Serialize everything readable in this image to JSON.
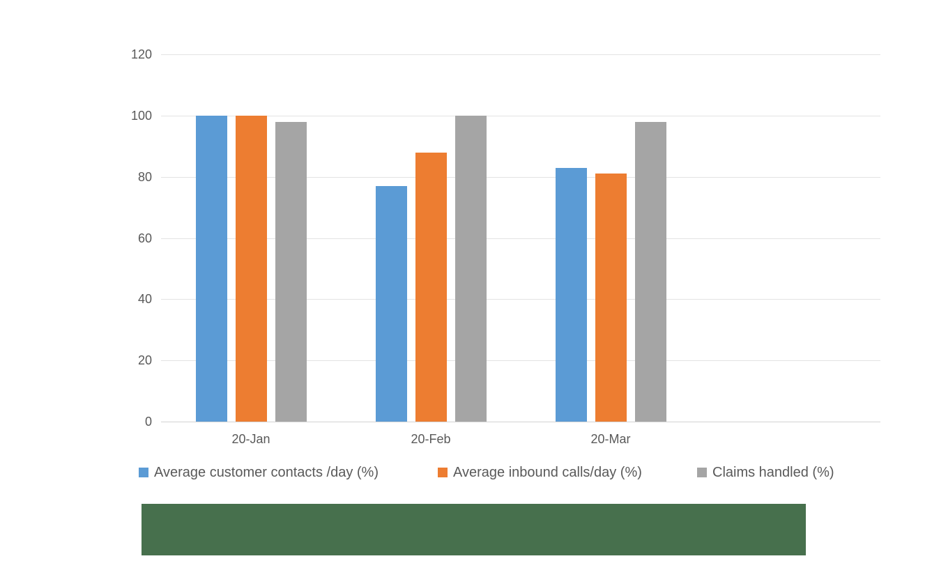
{
  "chart_data": {
    "type": "bar",
    "title": "",
    "categories": [
      "20-Jan",
      "20-Feb",
      "20-Mar"
    ],
    "series": [
      {
        "name": "Average customer contacts /day (%)",
        "color": "#5B9BD5",
        "values": [
          100,
          77,
          83
        ]
      },
      {
        "name": "Average inbound calls/day (%)",
        "color": "#ED7D31",
        "values": [
          100,
          88,
          81
        ]
      },
      {
        "name": "Claims handled (%)",
        "color": "#A5A5A5",
        "values": [
          98,
          100,
          98
        ]
      }
    ],
    "xlabel": "",
    "ylabel": "",
    "ylim": [
      0,
      120
    ],
    "yticks": [
      0,
      20,
      40,
      60,
      80,
      100,
      120
    ],
    "grid": true,
    "legend_position": "bottom"
  },
  "colors": {
    "text": "#595959",
    "gridline": "#E3E3E3",
    "axis_line": "#D2D2D2",
    "background": "#FFFFFF",
    "redaction_block": "#47704D"
  }
}
